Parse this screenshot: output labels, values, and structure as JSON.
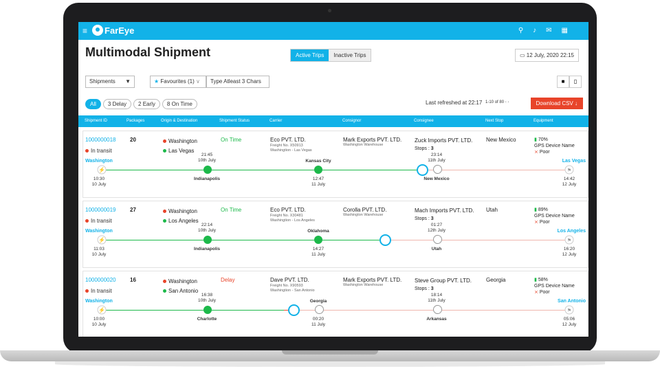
{
  "app": {
    "logo_text": "FarEye",
    "brand_color": "#12b2e8",
    "alert_color": "#e8442a",
    "ok_color": "#1cb94a"
  },
  "header": {
    "title": "Multimodal Shipment",
    "tabs": [
      {
        "label": "Active Trips",
        "active": true
      },
      {
        "label": "Inactive Trips",
        "active": false
      }
    ],
    "date": "12 July, 2020  22:15"
  },
  "filters": {
    "shipments": "Shipments",
    "favourites": "Favourites (1)",
    "search_placeholder": "Type Atleast 3 Chars"
  },
  "chips": [
    "All",
    "3 Delay",
    "2 Early",
    "8 On Time"
  ],
  "refresh": "Last refreshed at 22:17",
  "pagination": {
    "range": "1-10",
    "of": "of",
    "total": "80"
  },
  "download": "Download CSV",
  "columns": [
    "Shipment ID",
    "Packages",
    "Origin & Destination",
    "Shipment Status",
    "Carrier",
    "Consignor",
    "Consignee",
    "Next Stop",
    "Equipment"
  ],
  "shipments": [
    {
      "id": "1000000018",
      "transit": "In transit",
      "packages": "20",
      "origin": "Washington",
      "dest": "Las Vegas",
      "status": "On Time",
      "carrier": "Eco PVT. LTD.",
      "freight": "Freight No. X50913",
      "route": "Washingtion - Las Vegas",
      "consignor": "Mark Exports PVT. LTD.",
      "consignor_sub": "Washington Warehouse",
      "consignee": "Zuck Imports PVT. LTD.",
      "stops": "3",
      "next_stop": "New Mexico",
      "battery": "70%",
      "device": "GPS Device Name",
      "signal": "Poor",
      "tl_start": "Washington",
      "tl_end": "Las Vegas",
      "start_time": "10:30",
      "start_date": "10 July",
      "end_time": "14:42",
      "end_date": "12 July",
      "s1_time": "21:45",
      "s1_date": "10th July",
      "s1_city": "Indianapolis",
      "s2_city": "Kansas City",
      "s2_time": "12:47",
      "s2_date": "11 July",
      "s3_time": "23:14",
      "s3_date": "11th July",
      "s3_city": "New Mexico"
    },
    {
      "id": "1000000019",
      "transit": "In transit",
      "packages": "27",
      "origin": "Washington",
      "dest": "Los Angeles",
      "status": "On Time",
      "carrier": "Eco PVT. LTD.",
      "freight": "Freight No. X30481",
      "route": "Washingtion - Los Angeles",
      "consignor": "Corolla PVT. LTD.",
      "consignor_sub": "Washington Warehouse",
      "consignee": "Mach Imports PVT. LTD.",
      "stops": "3",
      "next_stop": "Utah",
      "battery": "89%",
      "device": "GPS Device Name",
      "signal": "Poor",
      "tl_start": "Washington",
      "tl_end": "Los Angeles",
      "start_time": "11:03",
      "start_date": "10 July",
      "end_time": "16:20",
      "end_date": "12 July",
      "s1_time": "22:14",
      "s1_date": "10th July",
      "s1_city": "Indianapolis",
      "s2_city": "Oklahoma",
      "s2_time": "14:27",
      "s2_date": "11 July",
      "s3_time": "01:27",
      "s3_date": "12th July",
      "s3_city": "Utah"
    },
    {
      "id": "1000000020",
      "transit": "In transit",
      "packages": "16",
      "origin": "Washington",
      "dest": "San Antonio",
      "status": "Delay",
      "carrier": "Dave PVT. LTD.",
      "freight": "Freight No. X90593",
      "route": "Washingtion - San Antonio",
      "consignor": "Mark Exports PVT. LTD.",
      "consignor_sub": "Washington Warehouse",
      "consignee": "Steve Group PVT. LTD.",
      "stops": "3",
      "next_stop": "Georgia",
      "battery": "58%",
      "device": "GPS Device Name",
      "signal": "Poor",
      "tl_start": "Washington",
      "tl_end": "San Antonio",
      "start_time": "10:00",
      "start_date": "10 July",
      "end_time": "05:06",
      "end_date": "12 July",
      "s1_time": "16:38",
      "s1_date": "10th July",
      "s1_city": "Charlotte",
      "s2_city": "Georgia",
      "s2_time": "00:20",
      "s2_date": "11 July",
      "s3_time": "18:14",
      "s3_date": "11th July",
      "s3_city": "Arkansas"
    }
  ]
}
